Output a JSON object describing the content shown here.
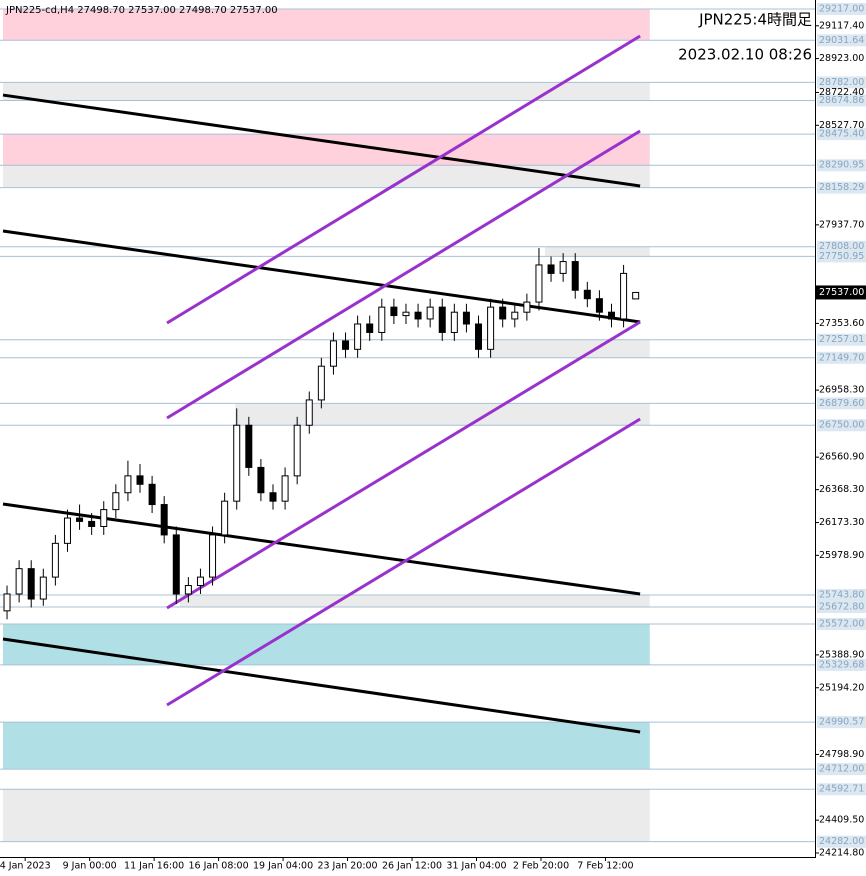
{
  "chart_data": {
    "type": "candlestick",
    "header": "JPN225-cd,H4  27498.70 27537.00 27498.70 27537.00",
    "title": "JPN225:4時間足",
    "subtitle": "2023.02.10 08:26",
    "xlim": [
      0,
      201.5
    ],
    "ylim": [
      24214.8,
      29217
    ],
    "xticks": [
      {
        "value": 5.5,
        "label": "4 Jan 2023"
      },
      {
        "value": 21.5,
        "label": "9 Jan 00:00"
      },
      {
        "value": 37.5,
        "label": "11 Jan 16:00"
      },
      {
        "value": 53.5,
        "label": "16 Jan 08:00"
      },
      {
        "value": 69.5,
        "label": "19 Jan 04:00"
      },
      {
        "value": 85.5,
        "label": "23 Jan 20:00"
      },
      {
        "value": 101.5,
        "label": "26 Jan 12:00"
      },
      {
        "value": 117.5,
        "label": "31 Jan 04:00"
      },
      {
        "value": 133.5,
        "label": "2 Feb 20:00"
      },
      {
        "value": 149.5,
        "label": "7 Feb 12:00"
      }
    ],
    "yticks": [
      {
        "value": 29117.4,
        "label": "29117.40"
      },
      {
        "value": 28923,
        "label": "28923.00"
      },
      {
        "value": 28722.4,
        "label": "28722.40"
      },
      {
        "value": 28527.7,
        "label": "28527.70"
      },
      {
        "value": 27937.7,
        "label": "27937.70"
      },
      {
        "value": 27353.6,
        "label": "27353.60"
      },
      {
        "value": 26958.3,
        "label": "26958.30"
      },
      {
        "value": 26560.9,
        "label": "26560.90"
      },
      {
        "value": 26368.3,
        "label": "26368.30"
      },
      {
        "value": 26173.3,
        "label": "26173.30"
      },
      {
        "value": 25978.9,
        "label": "25978.90"
      },
      {
        "value": 25388.9,
        "label": "25388.90"
      },
      {
        "value": 25194.2,
        "label": "25194.20"
      },
      {
        "value": 24798.9,
        "label": "24798.90"
      },
      {
        "value": 24409.5,
        "label": "24409.50"
      },
      {
        "value": 24214.8,
        "label": "24214.80"
      }
    ],
    "levels": [
      {
        "value": 29217,
        "label": "29217.00"
      },
      {
        "value": 29031.64,
        "label": "29031.64"
      },
      {
        "value": 28782,
        "label": "28782.00"
      },
      {
        "value": 28674.86,
        "label": "28674.86"
      },
      {
        "value": 28475.4,
        "label": "28475.40"
      },
      {
        "value": 28290.95,
        "label": "28290.95"
      },
      {
        "value": 28158.29,
        "label": "28158.29"
      },
      {
        "value": 27808,
        "label": "27808.00"
      },
      {
        "value": 27750.95,
        "label": "27750.95"
      },
      {
        "value": 27257.01,
        "label": "27257.01"
      },
      {
        "value": 27149.7,
        "label": "27149.70"
      },
      {
        "value": 26879.6,
        "label": "26879.60"
      },
      {
        "value": 26750,
        "label": "26750.00"
      },
      {
        "value": 25743.8,
        "label": "25743.80"
      },
      {
        "value": 25672.8,
        "label": "25672.80"
      },
      {
        "value": 25572,
        "label": "25572.00"
      },
      {
        "value": 25329.68,
        "label": "25329.68"
      },
      {
        "value": 24990.57,
        "label": "24990.57"
      },
      {
        "value": 24712,
        "label": "24712.00"
      },
      {
        "value": 24592.71,
        "label": "24592.71"
      },
      {
        "value": 24282,
        "label": "24282.00"
      }
    ],
    "current_price": {
      "value": 27537,
      "label": "27537.00"
    },
    "zones": [
      {
        "low": 29031.64,
        "high": 29217,
        "start": 0,
        "end": 160.5,
        "color": "#ffd1dc"
      },
      {
        "low": 28674.86,
        "high": 28782,
        "start": 0,
        "end": 160.5,
        "color": "#ebebeb"
      },
      {
        "low": 28290.95,
        "high": 28475.4,
        "start": 0,
        "end": 160.5,
        "color": "#ffd1dc"
      },
      {
        "low": 28158.29,
        "high": 28290.95,
        "start": 0,
        "end": 160.5,
        "color": "#ebebeb"
      },
      {
        "low": 27750.95,
        "high": 27808,
        "start": 134.5,
        "end": 160.5,
        "color": "#ebebeb"
      },
      {
        "low": 27149.7,
        "high": 27257.01,
        "start": 120.8,
        "end": 160.5,
        "color": "#ebebeb"
      },
      {
        "low": 26750,
        "high": 26879.6,
        "start": 57.6,
        "end": 160.5,
        "color": "#ebebeb"
      },
      {
        "low": 25672.8,
        "high": 25743.8,
        "start": 43.9,
        "end": 160.5,
        "color": "#ebebeb"
      },
      {
        "low": 25329.68,
        "high": 25572,
        "start": 0,
        "end": 160.5,
        "color": "#b0e0e6"
      },
      {
        "low": 24712,
        "high": 24990.57,
        "start": 0,
        "end": 160.5,
        "color": "#b0e0e6"
      },
      {
        "low": 24282,
        "high": 24592.71,
        "start": 0,
        "end": 160.5,
        "color": "#ebebeb"
      }
    ],
    "trendlines": [
      {
        "x": [
          0,
          158.1
        ],
        "y": [
          28707,
          28168
        ],
        "color": "#000000"
      },
      {
        "x": [
          0,
          158.1
        ],
        "y": [
          27901,
          27362
        ],
        "color": "#000000"
      },
      {
        "x": [
          0,
          158.1
        ],
        "y": [
          26283,
          25750
        ],
        "color": "#000000"
      },
      {
        "x": [
          0,
          158.1
        ],
        "y": [
          25483,
          24932
        ],
        "color": "#000000"
      },
      {
        "x": [
          40.7,
          158.1
        ],
        "y": [
          27356,
          29057
        ],
        "color": "#9932cc"
      },
      {
        "x": [
          40.7,
          158.1
        ],
        "y": [
          26793,
          28494
        ],
        "color": "#9932cc"
      },
      {
        "x": [
          40.7,
          158.1
        ],
        "y": [
          25667,
          27362
        ],
        "color": "#9932cc"
      },
      {
        "x": [
          40.7,
          158.1
        ],
        "y": [
          25092,
          26787
        ],
        "color": "#9932cc"
      }
    ],
    "x": [
      1,
      4,
      7,
      10,
      13,
      16,
      19,
      22,
      25,
      28,
      31,
      34,
      37,
      40,
      43,
      46,
      49,
      52,
      55,
      58,
      61,
      64,
      67,
      70,
      73,
      76,
      79,
      82,
      85,
      88,
      91,
      94,
      97,
      100,
      103,
      106,
      109,
      112,
      115,
      118,
      121,
      124,
      127,
      130,
      133,
      136,
      139,
      142,
      145,
      148,
      151,
      154,
      157
    ],
    "ohlc": [
      [
        25650,
        25800,
        25600,
        25750
      ],
      [
        25750,
        25950,
        25700,
        25900
      ],
      [
        25900,
        25950,
        25670,
        25720
      ],
      [
        25720,
        25900,
        25680,
        25850
      ],
      [
        25850,
        26100,
        25800,
        26050
      ],
      [
        26050,
        26250,
        26000,
        26200
      ],
      [
        26200,
        26280,
        26130,
        26180
      ],
      [
        26180,
        26230,
        26100,
        26150
      ],
      [
        26150,
        26300,
        26100,
        26250
      ],
      [
        26250,
        26400,
        26200,
        26350
      ],
      [
        26350,
        26540,
        26300,
        26450
      ],
      [
        26450,
        26520,
        26350,
        26400
      ],
      [
        26400,
        26450,
        26230,
        26280
      ],
      [
        26280,
        26330,
        26050,
        26100
      ],
      [
        26100,
        26150,
        25690,
        25750
      ],
      [
        25750,
        25850,
        25700,
        25800
      ],
      [
        25800,
        25900,
        25750,
        25850
      ],
      [
        25850,
        26150,
        25800,
        26100
      ],
      [
        26100,
        26350,
        26050,
        26300
      ],
      [
        26300,
        26850,
        26250,
        26750
      ],
      [
        26750,
        26800,
        26450,
        26500
      ],
      [
        26500,
        26550,
        26300,
        26350
      ],
      [
        26350,
        26400,
        26250,
        26300
      ],
      [
        26300,
        26500,
        26250,
        26450
      ],
      [
        26450,
        26800,
        26400,
        26750
      ],
      [
        26750,
        26950,
        26700,
        26900
      ],
      [
        26900,
        27150,
        26850,
        27100
      ],
      [
        27100,
        27300,
        27050,
        27250
      ],
      [
        27250,
        27300,
        27150,
        27200
      ],
      [
        27200,
        27400,
        27150,
        27350
      ],
      [
        27350,
        27400,
        27250,
        27300
      ],
      [
        27300,
        27500,
        27250,
        27450
      ],
      [
        27450,
        27500,
        27350,
        27400
      ],
      [
        27400,
        27470,
        27350,
        27420
      ],
      [
        27420,
        27470,
        27330,
        27380
      ],
      [
        27380,
        27500,
        27330,
        27450
      ],
      [
        27450,
        27500,
        27250,
        27300
      ],
      [
        27300,
        27470,
        27250,
        27420
      ],
      [
        27420,
        27470,
        27300,
        27350
      ],
      [
        27350,
        27400,
        27150,
        27200
      ],
      [
        27200,
        27500,
        27150,
        27450
      ],
      [
        27450,
        27500,
        27330,
        27380
      ],
      [
        27380,
        27470,
        27330,
        27420
      ],
      [
        27420,
        27530,
        27370,
        27480
      ],
      [
        27480,
        27800,
        27430,
        27700
      ],
      [
        27700,
        27750,
        27600,
        27650
      ],
      [
        27650,
        27770,
        27600,
        27720
      ],
      [
        27720,
        27770,
        27500,
        27550
      ],
      [
        27550,
        27600,
        27450,
        27500
      ],
      [
        27500,
        27550,
        27370,
        27420
      ],
      [
        27420,
        27470,
        27330,
        27380
      ],
      [
        27380,
        27700,
        27330,
        27650
      ],
      [
        27498.7,
        27537,
        27498.7,
        27537
      ]
    ]
  }
}
